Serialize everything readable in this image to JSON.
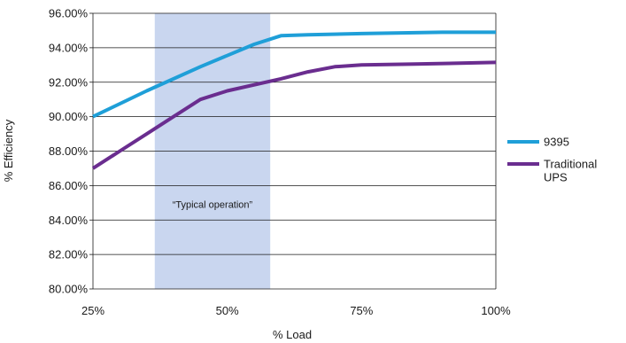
{
  "chart_data": {
    "type": "line",
    "title": "",
    "xlabel": "% Load",
    "ylabel": "% Efficiency",
    "x_ticks": [
      "25%",
      "50%",
      "75%",
      "100%"
    ],
    "y_ticks": [
      "80.00%",
      "82.00%",
      "84.00%",
      "86.00%",
      "88.00%",
      "90.00%",
      "92.00%",
      "94.00%",
      "96.00%"
    ],
    "xlim": [
      25,
      100
    ],
    "ylim": [
      80,
      96
    ],
    "grid": "horizontal",
    "legend_position": "right",
    "shaded_region": {
      "x_start": 36.5,
      "x_end": 58,
      "label": "“Typical operation”",
      "color": "#c9d6ef"
    },
    "series": [
      {
        "name": "9395",
        "color": "#1f9fd8",
        "points": [
          [
            25,
            90.0
          ],
          [
            35,
            91.5
          ],
          [
            45,
            92.9
          ],
          [
            55,
            94.2
          ],
          [
            60,
            94.7
          ],
          [
            65,
            94.75
          ],
          [
            75,
            94.82
          ],
          [
            90,
            94.9
          ],
          [
            100,
            94.9
          ]
        ]
      },
      {
        "name": "Traditional UPS",
        "name_lines": [
          "Traditional",
          "UPS"
        ],
        "color": "#6a2d8f",
        "points": [
          [
            25,
            87.0
          ],
          [
            30,
            88.0
          ],
          [
            35,
            89.0
          ],
          [
            40,
            90.0
          ],
          [
            45,
            91.0
          ],
          [
            50,
            91.5
          ],
          [
            60,
            92.2
          ],
          [
            65,
            92.6
          ],
          [
            70,
            92.9
          ],
          [
            75,
            93.0
          ],
          [
            85,
            93.05
          ],
          [
            100,
            93.15
          ]
        ]
      }
    ]
  }
}
